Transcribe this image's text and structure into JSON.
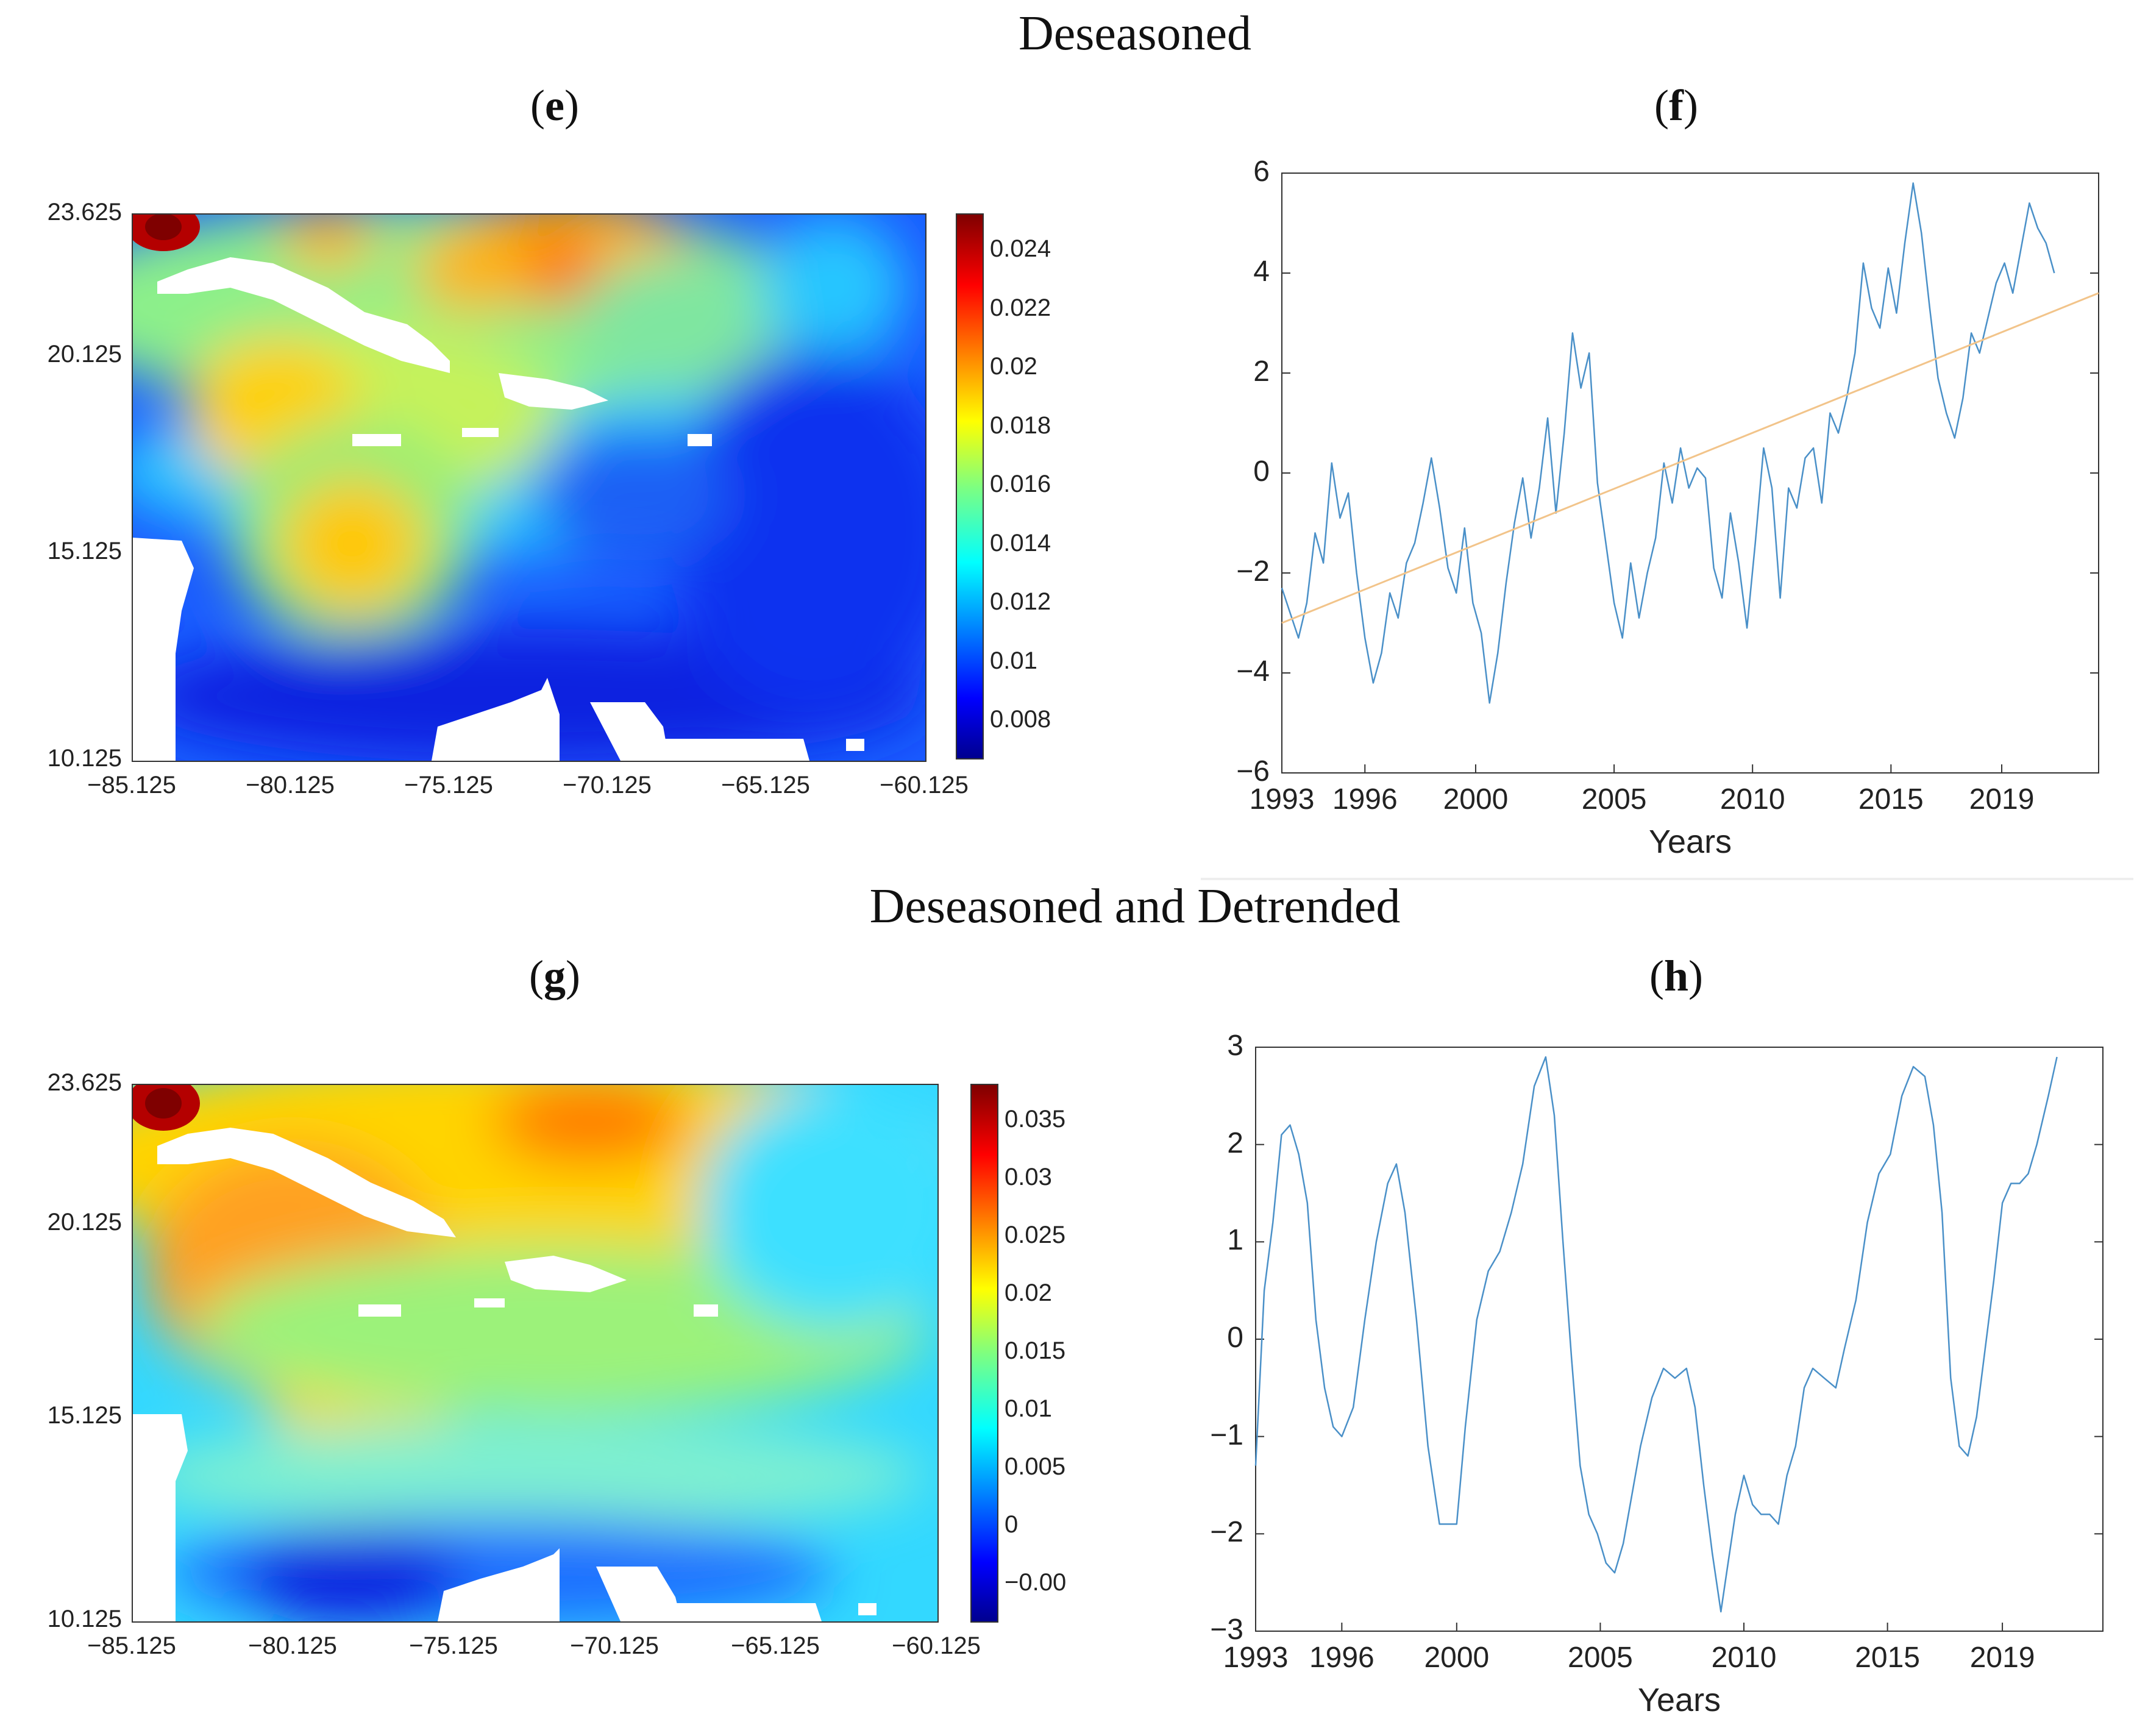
{
  "sections": {
    "top_title": "Deseasoned",
    "bottom_title": "Deseasoned and Detrended"
  },
  "panels": {
    "e": {
      "open": "(",
      "letter": "e",
      "close": ")"
    },
    "f": {
      "open": "(",
      "letter": "f",
      "close": ")"
    },
    "g": {
      "open": "(",
      "letter": "g",
      "close": ")"
    },
    "h": {
      "open": "(",
      "letter": "h",
      "close": ")"
    }
  },
  "colors": {
    "series_line": "#4a90c8",
    "trend_line": "#f2c48a",
    "axis": "#333333"
  },
  "chart_data": [
    {
      "id": "e",
      "type": "heatmap",
      "title": "",
      "x_ticks": [
        "−85.125",
        "−80.125",
        "−75.125",
        "−70.125",
        "−65.125",
        "−60.125"
      ],
      "y_ticks": [
        "23.625",
        "20.125",
        "15.125",
        "10.125"
      ],
      "xlim": [
        -85.125,
        -60.125
      ],
      "ylim": [
        10.125,
        23.625
      ],
      "colorbar": {
        "ticks": [
          "0.024",
          "0.022",
          "0.02",
          "0.018",
          "0.016",
          "0.014",
          "0.012",
          "0.01",
          "0.008"
        ],
        "range": [
          0.0065,
          0.0255
        ],
        "colormap": "jet"
      }
    },
    {
      "id": "f",
      "type": "line",
      "xlabel": "Years",
      "ylabel": "",
      "x_ticks": [
        "1993",
        "1996",
        "2000",
        "2005",
        "2010",
        "2015",
        "2019"
      ],
      "y_ticks": [
        "6",
        "4",
        "2",
        "0",
        "−2",
        "−4",
        "−6"
      ],
      "xlim": [
        1993,
        2022.5
      ],
      "ylim": [
        -6,
        6
      ],
      "series": [
        {
          "name": "Deseasoned",
          "x": [
            1993.0,
            1993.3,
            1993.6,
            1993.9,
            1994.2,
            1994.5,
            1994.8,
            1995.1,
            1995.4,
            1995.7,
            1996.0,
            1996.3,
            1996.6,
            1996.9,
            1997.2,
            1997.5,
            1997.8,
            1998.1,
            1998.4,
            1998.7,
            1999.0,
            1999.3,
            1999.6,
            1999.9,
            2000.2,
            2000.5,
            2000.8,
            2001.1,
            2001.4,
            2001.7,
            2002.0,
            2002.3,
            2002.6,
            2002.9,
            2003.2,
            2003.5,
            2003.8,
            2004.1,
            2004.4,
            2004.7,
            2005.0,
            2005.3,
            2005.6,
            2005.9,
            2006.2,
            2006.5,
            2006.8,
            2007.1,
            2007.4,
            2007.7,
            2008.0,
            2008.3,
            2008.6,
            2008.9,
            2009.2,
            2009.5,
            2009.8,
            2010.1,
            2010.4,
            2010.7,
            2011.0,
            2011.3,
            2011.6,
            2011.9,
            2012.2,
            2012.5,
            2012.8,
            2013.1,
            2013.4,
            2013.7,
            2014.0,
            2014.3,
            2014.6,
            2014.9,
            2015.2,
            2015.5,
            2015.8,
            2016.1,
            2016.4,
            2016.7,
            2017.0,
            2017.3,
            2017.6,
            2017.9,
            2018.2,
            2018.5,
            2018.8,
            2019.1,
            2019.4,
            2019.7,
            2020.0,
            2020.3,
            2020.6,
            2020.9
          ],
          "values": [
            -2.3,
            -2.8,
            -3.3,
            -2.6,
            -1.2,
            -1.8,
            0.2,
            -0.9,
            -0.4,
            -2.0,
            -3.3,
            -4.2,
            -3.6,
            -2.4,
            -2.9,
            -1.8,
            -1.4,
            -0.6,
            0.3,
            -0.7,
            -1.9,
            -2.4,
            -1.1,
            -2.6,
            -3.2,
            -4.6,
            -3.6,
            -2.2,
            -1.0,
            -0.1,
            -1.3,
            -0.3,
            1.1,
            -0.8,
            0.8,
            2.8,
            1.7,
            2.4,
            -0.2,
            -1.4,
            -2.6,
            -3.3,
            -1.8,
            -2.9,
            -2.0,
            -1.3,
            0.2,
            -0.6,
            0.5,
            -0.3,
            0.1,
            -0.1,
            -1.9,
            -2.5,
            -0.8,
            -1.8,
            -3.1,
            -1.4,
            0.5,
            -0.3,
            -2.5,
            -0.3,
            -0.7,
            0.3,
            0.5,
            -0.6,
            1.2,
            0.8,
            1.5,
            2.4,
            4.2,
            3.3,
            2.9,
            4.1,
            3.2,
            4.6,
            5.8,
            4.8,
            3.3,
            1.9,
            1.2,
            0.7,
            1.5,
            2.8,
            2.4,
            3.1,
            3.8,
            4.2,
            3.6,
            4.5,
            5.4,
            4.9,
            4.6,
            4.0
          ]
        },
        {
          "name": "Trend",
          "x": [
            1993.0,
            2022.5
          ],
          "values": [
            -3.0,
            3.6
          ]
        }
      ]
    },
    {
      "id": "g",
      "type": "heatmap",
      "title": "",
      "x_ticks": [
        "−85.125",
        "−80.125",
        "−75.125",
        "−70.125",
        "−65.125",
        "−60.125"
      ],
      "y_ticks": [
        "23.625",
        "20.125",
        "15.125",
        "10.125"
      ],
      "xlim": [
        -85.125,
        -60.125
      ],
      "ylim": [
        10.125,
        23.625
      ],
      "colorbar": {
        "ticks": [
          "0.035",
          "0.03",
          "0.025",
          "0.02",
          "0.015",
          "0.01",
          "0.005",
          "0",
          "−0.00"
        ],
        "range": [
          -0.009,
          0.039
        ],
        "colormap": "jet"
      }
    },
    {
      "id": "h",
      "type": "line",
      "xlabel": "Years",
      "ylabel": "",
      "x_ticks": [
        "1993",
        "1996",
        "2000",
        "2005",
        "2010",
        "2015",
        "2019"
      ],
      "y_ticks": [
        "3",
        "2",
        "1",
        "0",
        "−1",
        "−2",
        "−3"
      ],
      "xlim": [
        1993,
        2022.5
      ],
      "ylim": [
        -3,
        3
      ],
      "series": [
        {
          "name": "Deseasoned and Detrended",
          "x": [
            1993.0,
            1993.3,
            1993.6,
            1993.9,
            1994.2,
            1994.5,
            1994.8,
            1995.1,
            1995.4,
            1995.7,
            1996.0,
            1996.4,
            1996.8,
            1997.2,
            1997.6,
            1997.9,
            1998.2,
            1998.6,
            1999.0,
            1999.4,
            1999.8,
            2000.0,
            2000.3,
            2000.7,
            2001.1,
            2001.5,
            2001.9,
            2002.3,
            2002.7,
            2003.1,
            2003.4,
            2003.7,
            2004.0,
            2004.3,
            2004.6,
            2004.9,
            2005.2,
            2005.5,
            2005.8,
            2006.1,
            2006.4,
            2006.8,
            2007.2,
            2007.6,
            2008.0,
            2008.3,
            2008.6,
            2008.9,
            2009.2,
            2009.4,
            2009.7,
            2010.0,
            2010.3,
            2010.6,
            2010.9,
            2011.2,
            2011.5,
            2011.8,
            2012.1,
            2012.4,
            2012.8,
            2013.2,
            2013.5,
            2013.9,
            2014.3,
            2014.7,
            2015.1,
            2015.5,
            2015.9,
            2016.3,
            2016.6,
            2016.9,
            2017.2,
            2017.5,
            2017.8,
            2018.1,
            2018.4,
            2018.7,
            2019.0,
            2019.3,
            2019.6,
            2019.9,
            2020.2,
            2020.6,
            2020.9
          ],
          "values": [
            -1.3,
            0.5,
            1.2,
            2.1,
            2.2,
            1.9,
            1.4,
            0.2,
            -0.5,
            -0.9,
            -1.0,
            -0.7,
            0.2,
            1.0,
            1.6,
            1.8,
            1.3,
            0.2,
            -1.1,
            -1.9,
            -1.9,
            -1.9,
            -0.9,
            0.2,
            0.7,
            0.9,
            1.3,
            1.8,
            2.6,
            2.9,
            2.3,
            1.0,
            -0.2,
            -1.3,
            -1.8,
            -2.0,
            -2.3,
            -2.4,
            -2.1,
            -1.6,
            -1.1,
            -0.6,
            -0.3,
            -0.4,
            -0.3,
            -0.7,
            -1.5,
            -2.2,
            -2.8,
            -2.4,
            -1.8,
            -1.4,
            -1.7,
            -1.8,
            -1.8,
            -1.9,
            -1.4,
            -1.1,
            -0.5,
            -0.3,
            -0.4,
            -0.5,
            -0.1,
            0.4,
            1.2,
            1.7,
            1.9,
            2.5,
            2.8,
            2.7,
            2.2,
            1.3,
            -0.4,
            -1.1,
            -1.2,
            -0.8,
            -0.1,
            0.6,
            1.4,
            1.6,
            1.6,
            1.7,
            2.0,
            2.5,
            2.9
          ]
        }
      ]
    }
  ]
}
